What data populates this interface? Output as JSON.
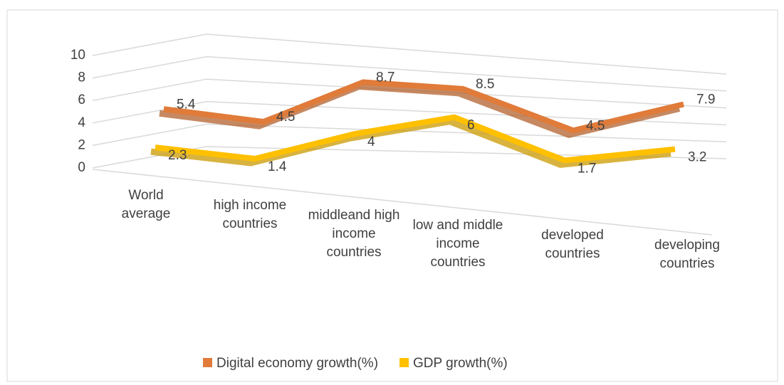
{
  "chart_data": {
    "type": "line3d",
    "categories": [
      "World average",
      "high income countries",
      "middleand high income countries",
      "low and middle income countries",
      "developed countries",
      "developing countries"
    ],
    "series": [
      {
        "name": "Digital economy growth(%)",
        "color": "#e07b39",
        "values": [
          5.4,
          4.5,
          8.7,
          8.5,
          4.5,
          7.9
        ]
      },
      {
        "name": "GDP growth(%)",
        "color": "#ffc000",
        "values": [
          2.3,
          1.4,
          4.0,
          6.0,
          1.7,
          3.2
        ]
      }
    ],
    "ylim": [
      0,
      10
    ],
    "yticks": [
      0,
      2,
      4,
      6,
      8,
      10
    ],
    "grid": true,
    "legend": "bottom"
  }
}
